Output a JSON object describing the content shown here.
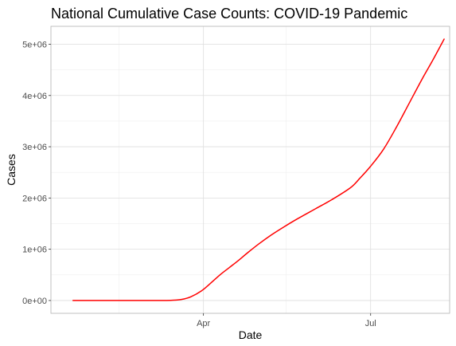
{
  "chart_data": {
    "type": "line",
    "title": "National Cumulative Case Counts: COVID-19 Pandemic",
    "xlabel": "Date",
    "ylabel": "Cases",
    "x_type": "date",
    "xlim": [
      "2020-01-09",
      "2020-08-13"
    ],
    "ylim": [
      -250000,
      5350000
    ],
    "x_ticks": [
      {
        "value": "2020-04-01",
        "label": "Apr"
      },
      {
        "value": "2020-07-01",
        "label": "Jul"
      }
    ],
    "x_minor_ticks": [
      "2020-02-15",
      "2020-05-16",
      "2020-08-15"
    ],
    "y_ticks": [
      {
        "value": 0,
        "label": "0e+00"
      },
      {
        "value": 1000000,
        "label": "1e+06"
      },
      {
        "value": 2000000,
        "label": "2e+06"
      },
      {
        "value": 3000000,
        "label": "3e+06"
      },
      {
        "value": 4000000,
        "label": "4e+06"
      },
      {
        "value": 5000000,
        "label": "5e+06"
      }
    ],
    "grid": true,
    "legend": "none",
    "series": [
      {
        "color": "#ff0000",
        "points": [
          [
            "2020-01-21",
            0
          ],
          [
            "2020-02-15",
            0
          ],
          [
            "2020-03-01",
            0
          ],
          [
            "2020-03-10",
            1000
          ],
          [
            "2020-03-15",
            5000
          ],
          [
            "2020-03-20",
            20000
          ],
          [
            "2020-03-25",
            70000
          ],
          [
            "2020-03-31",
            190000
          ],
          [
            "2020-04-05",
            340000
          ],
          [
            "2020-04-10",
            500000
          ],
          [
            "2020-04-15",
            640000
          ],
          [
            "2020-04-20",
            780000
          ],
          [
            "2020-04-25",
            930000
          ],
          [
            "2020-05-01",
            1100000
          ],
          [
            "2020-05-08",
            1280000
          ],
          [
            "2020-05-15",
            1440000
          ],
          [
            "2020-05-22",
            1590000
          ],
          [
            "2020-06-01",
            1790000
          ],
          [
            "2020-06-10",
            1970000
          ],
          [
            "2020-06-20",
            2200000
          ],
          [
            "2020-06-25",
            2380000
          ],
          [
            "2020-07-01",
            2620000
          ],
          [
            "2020-07-08",
            2950000
          ],
          [
            "2020-07-15",
            3380000
          ],
          [
            "2020-07-22",
            3850000
          ],
          [
            "2020-07-29",
            4320000
          ],
          [
            "2020-08-04",
            4700000
          ],
          [
            "2020-08-10",
            5100000
          ]
        ]
      }
    ]
  }
}
